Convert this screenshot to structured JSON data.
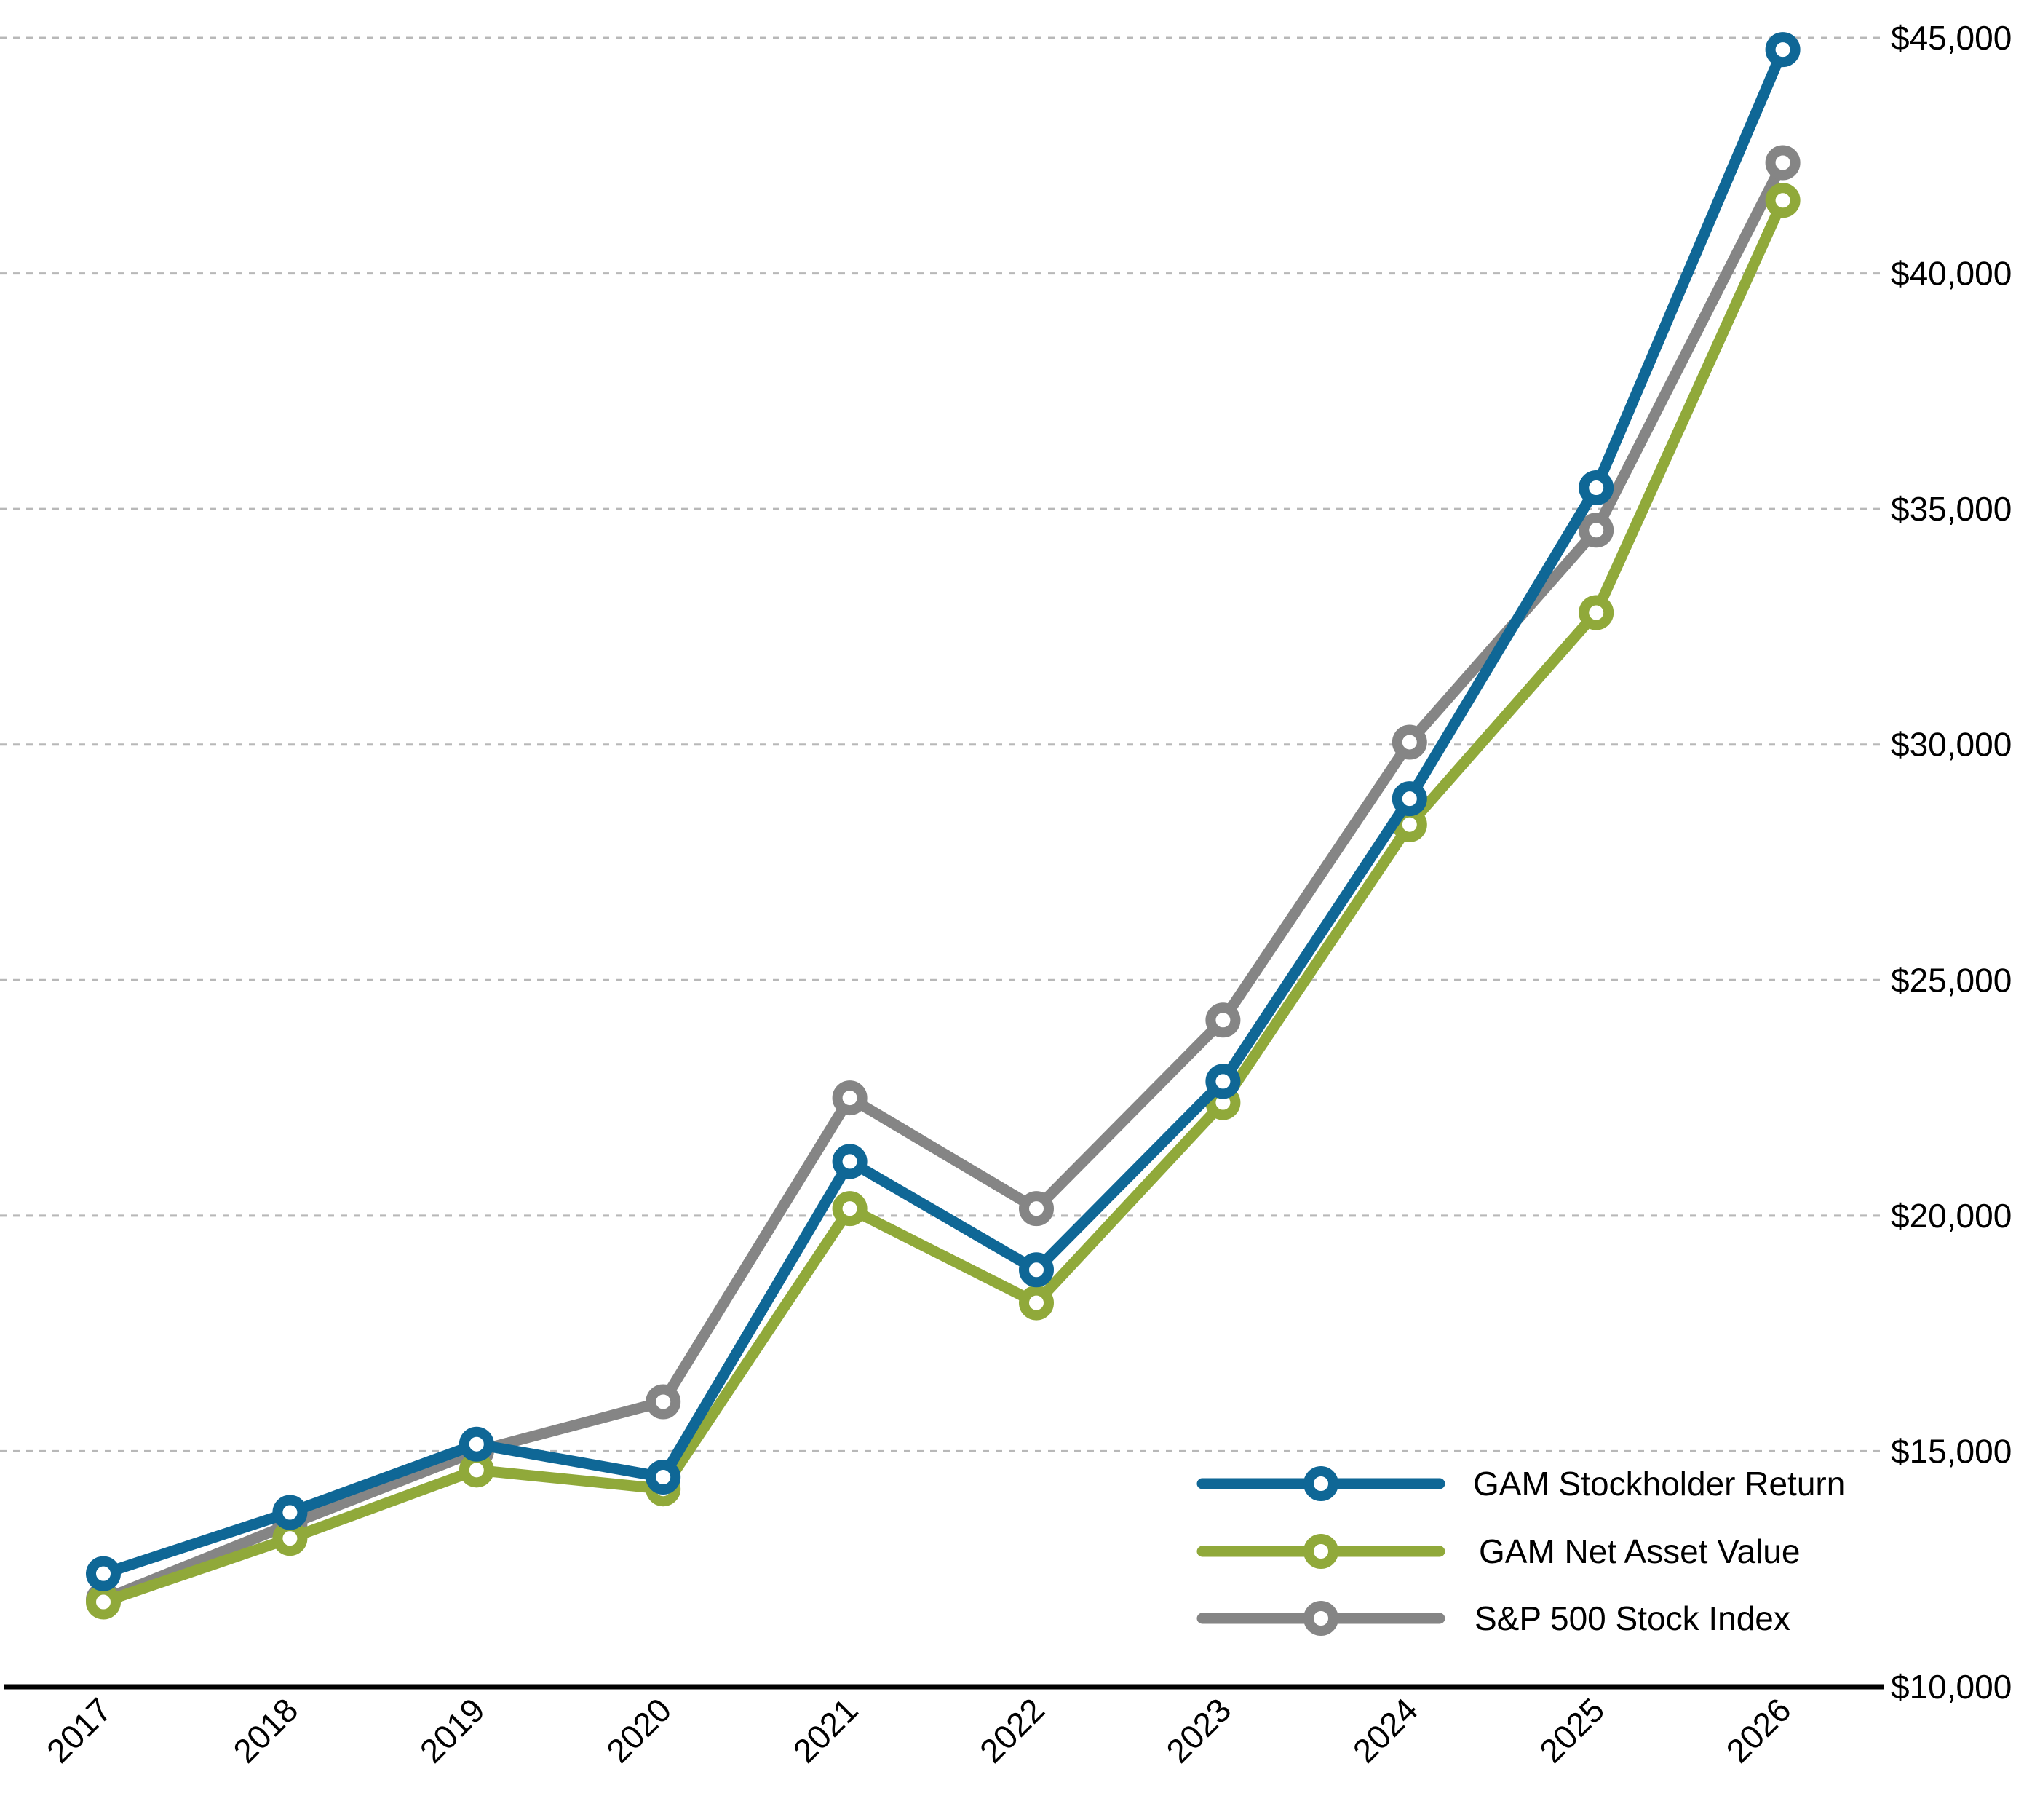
{
  "chart_data": {
    "type": "line",
    "title": "",
    "xlabel": "",
    "ylabel": "",
    "categories": [
      "2017",
      "2018",
      "2019",
      "2020",
      "2021",
      "2022",
      "2023",
      "2024",
      "2025",
      "2026"
    ],
    "ylim": [
      10000,
      45000
    ],
    "yticks": [
      {
        "value": 10000,
        "label": "$10,000"
      },
      {
        "value": 15000,
        "label": "$15,000"
      },
      {
        "value": 20000,
        "label": "$20,000"
      },
      {
        "value": 25000,
        "label": "$25,000"
      },
      {
        "value": 30000,
        "label": "$30,000"
      },
      {
        "value": 35000,
        "label": "$35,000"
      },
      {
        "value": 40000,
        "label": "$40,000"
      },
      {
        "value": 45000,
        "label": "$45,000"
      }
    ],
    "grid": true,
    "y_axis_side": "right",
    "legend_position": "bottom-right",
    "series": [
      {
        "name": "GAM Stockholder Return",
        "color": "#0F6796",
        "values": [
          12400,
          13700,
          15150,
          14450,
          21150,
          18850,
          22850,
          28850,
          35450,
          44750
        ]
      },
      {
        "name": "GAM Net Asset Value",
        "color": "#90A93A",
        "values": [
          11800,
          13150,
          14600,
          14200,
          20150,
          18150,
          22400,
          28300,
          32800,
          41550
        ]
      },
      {
        "name": "S&P 500 Stock Index",
        "color": "#858585",
        "values": [
          11850,
          13450,
          15000,
          16050,
          22500,
          20150,
          24150,
          30050,
          34550,
          42350
        ]
      }
    ]
  }
}
